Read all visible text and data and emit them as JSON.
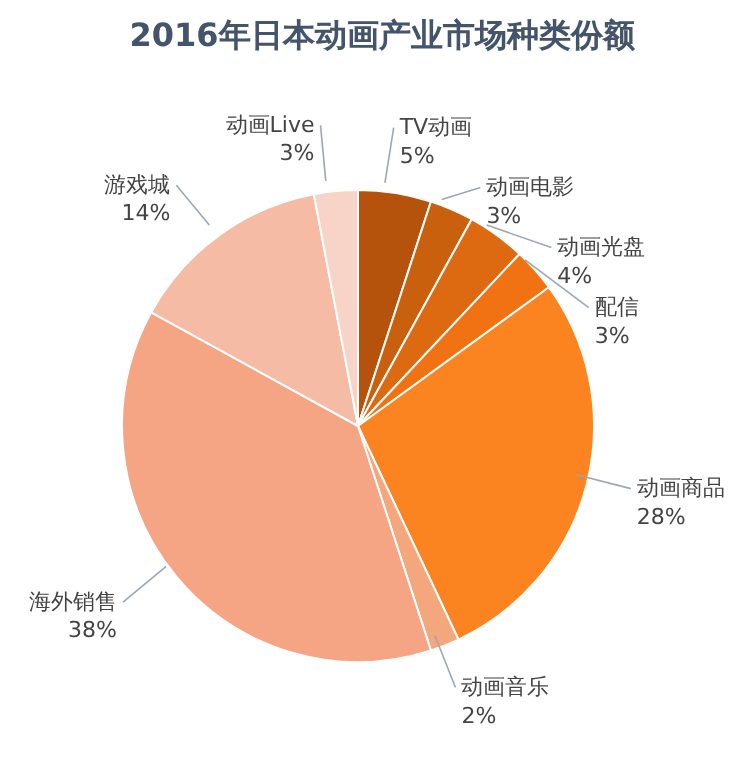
{
  "chart_data": {
    "type": "pie",
    "title": "2016年日本动画产业市场种类份额",
    "categories": [
      "TV动画",
      "动画电影",
      "动画光盘",
      "配信",
      "动画商品",
      "动画音乐",
      "海外销售",
      "游戏城",
      "动画Live"
    ],
    "values": [
      5,
      3,
      4,
      3,
      28,
      2,
      38,
      14,
      3
    ],
    "value_labels": [
      "5%",
      "3%",
      "4%",
      "3%",
      "28%",
      "2%",
      "38%",
      "14%",
      "3%"
    ],
    "colors": [
      "#b5520c",
      "#c9600e",
      "#dd6a10",
      "#f07212",
      "#fb8320",
      "#f4a77c",
      "#f6a584",
      "#f5bba5",
      "#f8d3c8"
    ]
  }
}
